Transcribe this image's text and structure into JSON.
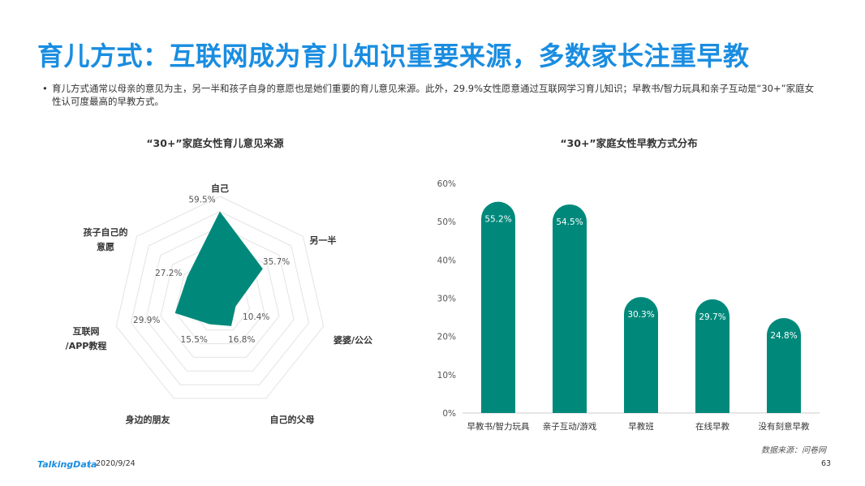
{
  "page": {
    "title": "育儿方式：互联网成为育儿知识重要来源，多数家长注重早教",
    "bullet_text": "育儿方式通常以母亲的意见为主，另一半和孩子自身的意愿也是她们重要的育儿意见来源。此外，29.9%女性愿意通过互联网学习育儿知识；早教书/智力玩具和亲子互动是“30+”家庭女性认可度最高的早教方式。",
    "source": "数据来源：问卷网",
    "logo": "TalkingData",
    "date": "2020/9/24",
    "page_number": "63"
  },
  "colors": {
    "accent": "#1a8de0",
    "series": "#00897b",
    "grid": "#e3e3e3"
  },
  "chart_data": [
    {
      "type": "radar",
      "title": "“30+”家庭女性育儿意见来源",
      "categories": [
        "自己",
        "另一半",
        "婆婆/公公",
        "自己的父母",
        "身边的朋友",
        "互联网/APP教程",
        "孩子自己的意愿"
      ],
      "category_labels": [
        [
          "自己"
        ],
        [
          "另一半"
        ],
        [
          "婆婆/公公"
        ],
        [
          "自己的父母"
        ],
        [
          "身边的朋友"
        ],
        [
          "互联网",
          "/APP教程"
        ],
        [
          "孩子自己的",
          "意愿"
        ]
      ],
      "values": [
        59.5,
        35.7,
        10.4,
        16.8,
        15.5,
        29.9,
        27.2
      ],
      "value_labels": [
        "59.5%",
        "35.7%",
        "10.4%",
        "16.8%",
        "15.5%",
        "29.9%",
        "27.2%"
      ],
      "max": 70,
      "grid_levels": 7
    },
    {
      "type": "bar",
      "title": "“30+”家庭女性早教方式分布",
      "categories": [
        "早教书/智力玩具",
        "亲子互动/游戏",
        "早教班",
        "在线早教",
        "没有刻意早教"
      ],
      "values": [
        55.2,
        54.5,
        30.3,
        29.7,
        24.8
      ],
      "value_labels": [
        "55.2%",
        "54.5%",
        "30.3%",
        "29.7%",
        "24.8%"
      ],
      "ylim": [
        0,
        60
      ],
      "yticks": [
        "0%",
        "10%",
        "20%",
        "30%",
        "40%",
        "50%",
        "60%"
      ]
    }
  ]
}
